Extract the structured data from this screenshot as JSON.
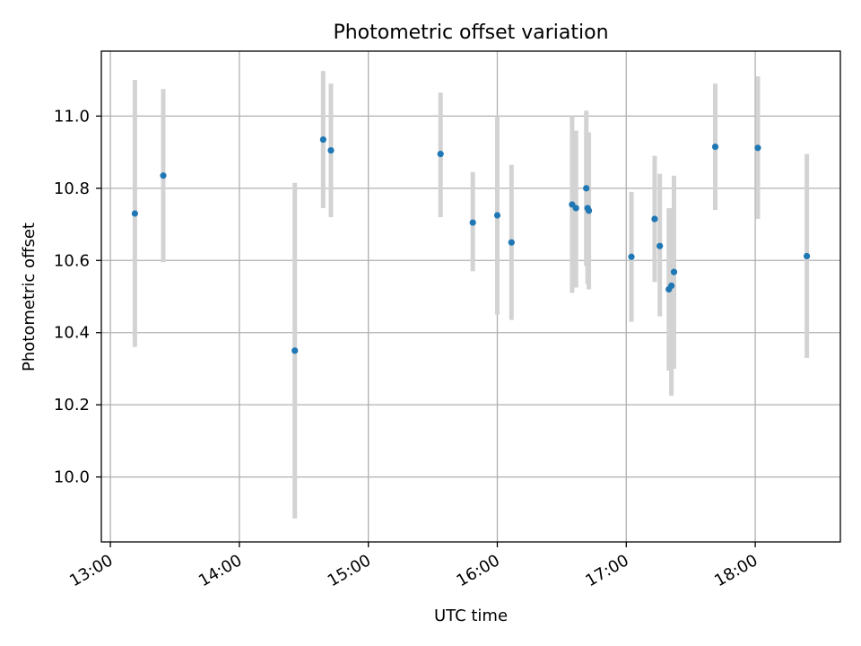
{
  "chart_data": {
    "type": "scatter",
    "title": "Photometric offset variation",
    "xlabel": "UTC time",
    "ylabel": "Photometric offset",
    "xlim": [
      12.93,
      18.66
    ],
    "ylim": [
      9.82,
      11.18
    ],
    "x_ticks": [
      {
        "hour": 13,
        "label": "13:00"
      },
      {
        "hour": 14,
        "label": "14:00"
      },
      {
        "hour": 15,
        "label": "15:00"
      },
      {
        "hour": 16,
        "label": "16:00"
      },
      {
        "hour": 17,
        "label": "17:00"
      },
      {
        "hour": 18,
        "label": "18:00"
      }
    ],
    "y_ticks": [
      {
        "value": 10.0,
        "label": "10.0"
      },
      {
        "value": 10.2,
        "label": "10.2"
      },
      {
        "value": 10.4,
        "label": "10.4"
      },
      {
        "value": 10.6,
        "label": "10.6"
      },
      {
        "value": 10.8,
        "label": "10.8"
      },
      {
        "value": 11.0,
        "label": "11.0"
      }
    ],
    "grid": true,
    "point_color": "#1f77b4",
    "errorbar_color": "#d3d3d3",
    "points": [
      {
        "t": 13.19,
        "y": 10.73,
        "ylo": 10.36,
        "yhi": 11.1
      },
      {
        "t": 13.41,
        "y": 10.835,
        "ylo": 10.595,
        "yhi": 11.075
      },
      {
        "t": 14.43,
        "y": 10.35,
        "ylo": 9.885,
        "yhi": 10.815
      },
      {
        "t": 14.65,
        "y": 10.935,
        "ylo": 10.745,
        "yhi": 11.125
      },
      {
        "t": 14.71,
        "y": 10.905,
        "ylo": 10.72,
        "yhi": 11.09
      },
      {
        "t": 15.56,
        "y": 10.895,
        "ylo": 10.72,
        "yhi": 11.065
      },
      {
        "t": 15.81,
        "y": 10.705,
        "ylo": 10.57,
        "yhi": 10.845
      },
      {
        "t": 16.0,
        "y": 10.725,
        "ylo": 10.45,
        "yhi": 11.0
      },
      {
        "t": 16.11,
        "y": 10.65,
        "ylo": 10.435,
        "yhi": 10.865
      },
      {
        "t": 16.58,
        "y": 10.755,
        "ylo": 10.51,
        "yhi": 11.0
      },
      {
        "t": 16.61,
        "y": 10.745,
        "ylo": 10.525,
        "yhi": 10.96
      },
      {
        "t": 16.69,
        "y": 10.8,
        "ylo": 10.585,
        "yhi": 11.015
      },
      {
        "t": 16.7,
        "y": 10.745,
        "ylo": 10.535,
        "yhi": 10.955
      },
      {
        "t": 16.71,
        "y": 10.738,
        "ylo": 10.52,
        "yhi": 10.955
      },
      {
        "t": 17.04,
        "y": 10.61,
        "ylo": 10.43,
        "yhi": 10.79
      },
      {
        "t": 17.22,
        "y": 10.715,
        "ylo": 10.54,
        "yhi": 10.89
      },
      {
        "t": 17.26,
        "y": 10.64,
        "ylo": 10.445,
        "yhi": 10.84
      },
      {
        "t": 17.33,
        "y": 10.52,
        "ylo": 10.295,
        "yhi": 10.745
      },
      {
        "t": 17.35,
        "y": 10.53,
        "ylo": 10.225,
        "yhi": 10.745
      },
      {
        "t": 17.37,
        "y": 10.568,
        "ylo": 10.3,
        "yhi": 10.835
      },
      {
        "t": 17.69,
        "y": 10.915,
        "ylo": 10.74,
        "yhi": 11.09
      },
      {
        "t": 18.02,
        "y": 10.912,
        "ylo": 10.715,
        "yhi": 11.11
      },
      {
        "t": 18.4,
        "y": 10.612,
        "ylo": 10.33,
        "yhi": 10.895
      }
    ]
  }
}
